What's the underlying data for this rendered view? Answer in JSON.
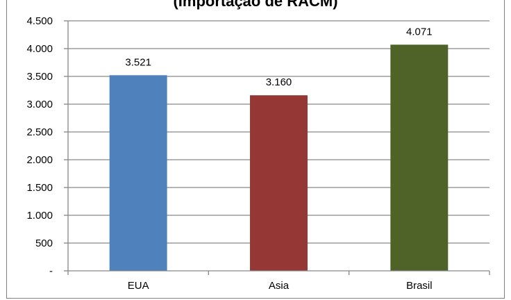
{
  "chart_data": {
    "type": "bar",
    "title": "(Importação de RACM)",
    "categories": [
      "EUA",
      "Asia",
      "Brasil"
    ],
    "values": [
      3521,
      3160,
      4071
    ],
    "data_labels": [
      "3.521",
      "3.160",
      "4.071"
    ],
    "colors": [
      "#4f81bd",
      "#953735",
      "#4f6228"
    ],
    "ylim": [
      0,
      4500
    ],
    "yticks": [
      0,
      500,
      1000,
      1500,
      2000,
      2500,
      3000,
      3500,
      4000,
      4500
    ],
    "ytick_labels": [
      "-",
      "500",
      "1.000",
      "1.500",
      "2.000",
      "2.500",
      "3.000",
      "3.500",
      "4.000",
      "4.500"
    ],
    "grid": true,
    "legend": "none"
  }
}
